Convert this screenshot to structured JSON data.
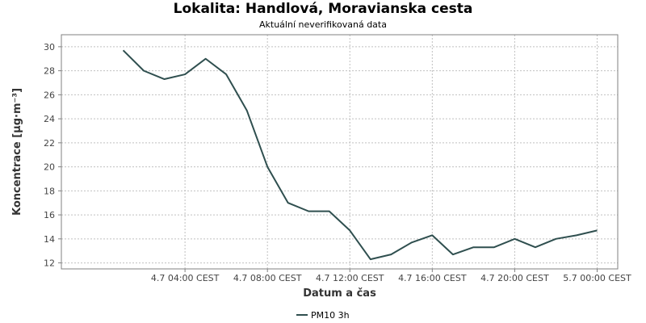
{
  "header": {
    "title": "Lokalita: Handlová, Moravianska cesta",
    "subtitle": "Aktuální neverifikovaná data"
  },
  "chart_data": {
    "type": "line",
    "title": "Lokalita: Handlová, Moravianska cesta",
    "subtitle": "Aktuální neverifikovaná data",
    "xlabel": "Datum a čas",
    "ylabel": "Koncentrace [µg·m⁻³]",
    "ylim": [
      11.5,
      31
    ],
    "yticks": [
      12,
      14,
      16,
      18,
      20,
      22,
      24,
      26,
      28,
      30
    ],
    "xlim": [
      -3,
      24
    ],
    "xticks": [
      {
        "hour": 3,
        "label": "4.7 04:00 CEST"
      },
      {
        "hour": 7,
        "label": "4.7 08:00 CEST"
      },
      {
        "hour": 11,
        "label": "4.7 12:00 CEST"
      },
      {
        "hour": 15,
        "label": "4.7 16:00 CEST"
      },
      {
        "hour": 19,
        "label": "4.7 20:00 CEST"
      },
      {
        "hour": 23,
        "label": "5.7 00:00 CEST"
      }
    ],
    "grid": true,
    "legend_position": "bottom-center",
    "series": [
      {
        "name": "PM10 3h",
        "color": "#2f4f4f",
        "x": [
          0,
          1,
          2,
          3,
          4,
          5,
          6,
          7,
          8,
          9,
          10,
          11,
          12,
          13,
          14,
          15,
          16,
          17,
          18,
          19,
          20,
          21,
          22,
          23
        ],
        "values": [
          29.7,
          28.0,
          27.3,
          27.7,
          29.0,
          27.7,
          24.7,
          20.0,
          17.0,
          16.3,
          16.3,
          14.7,
          12.3,
          12.7,
          13.7,
          14.3,
          12.7,
          13.3,
          13.3,
          14.0,
          13.3,
          14.0,
          14.3,
          14.7
        ]
      }
    ]
  }
}
